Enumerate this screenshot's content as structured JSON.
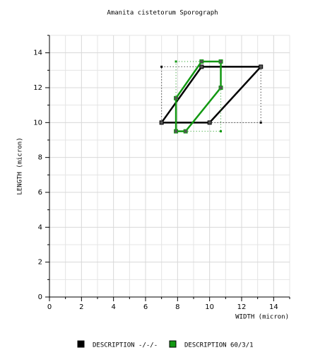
{
  "chart_data": {
    "type": "polygon",
    "title": "Amanita cistetorum Sporograph",
    "x_label": "WIDTH (micron)",
    "y_label": "LENGTH (micron)",
    "xlim": [
      0,
      15
    ],
    "ylim": [
      0,
      15
    ],
    "xticks": [
      0,
      2,
      4,
      6,
      8,
      10,
      12,
      14
    ],
    "yticks": [
      0,
      2,
      4,
      6,
      8,
      10,
      12,
      14
    ],
    "grid": true,
    "series": [
      {
        "name": "DESCRIPTION -/-/-",
        "color": "#000000",
        "x": [
          7,
          9.5,
          13.2,
          10
        ],
        "y": [
          10,
          13.2,
          13.2,
          10
        ]
      },
      {
        "name": "DESCRIPTION 60/3/1",
        "color": "#129812",
        "x": [
          7.9,
          7.9,
          9.5,
          10.7,
          10.7,
          8.5
        ],
        "y": [
          9.5,
          11.4,
          13.5,
          13.5,
          12,
          9.5
        ]
      }
    ]
  }
}
